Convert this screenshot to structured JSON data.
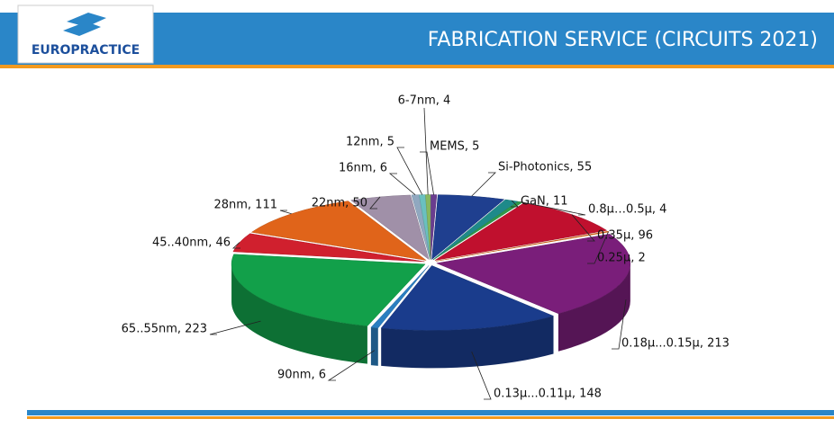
{
  "header": {
    "logo": "EUROPRACTICE"
  },
  "chart_data": {
    "type": "pie",
    "title": "FABRICATION SERVICE (CIRCUITS 2021)",
    "values": [
      5,
      55,
      11,
      4,
      96,
      2,
      213,
      148,
      6,
      223,
      46,
      111,
      50,
      6,
      5,
      4
    ],
    "value_labels": [
      "MEMS, 5",
      "Si-Photonics, 55",
      "GaN, 11",
      "0.8µ…0.5µ, 4",
      "0.35µ, 96",
      "0.25µ, 2",
      "0.18µ...0.15µ, 213",
      "0.13µ...0.11µ, 148",
      "90nm, 6",
      "65..55nm, 223",
      "45..40nm, 46",
      "28nm, 111",
      "22nm, 50",
      "16nm, 6",
      "12nm, 5",
      "6-7nm, 4"
    ],
    "colors": [
      "#6a3d8f",
      "#1f3f8f",
      "#1e8a8a",
      "#2e9a4a",
      "#c0102e",
      "#e06a1a",
      "#7a1e7a",
      "#1a3c8c",
      "#2a7ec0",
      "#12a04a",
      "#d0202e",
      "#e0641a",
      "#a090a8",
      "#90a8c0",
      "#6ac0c0",
      "#88b860"
    ]
  }
}
